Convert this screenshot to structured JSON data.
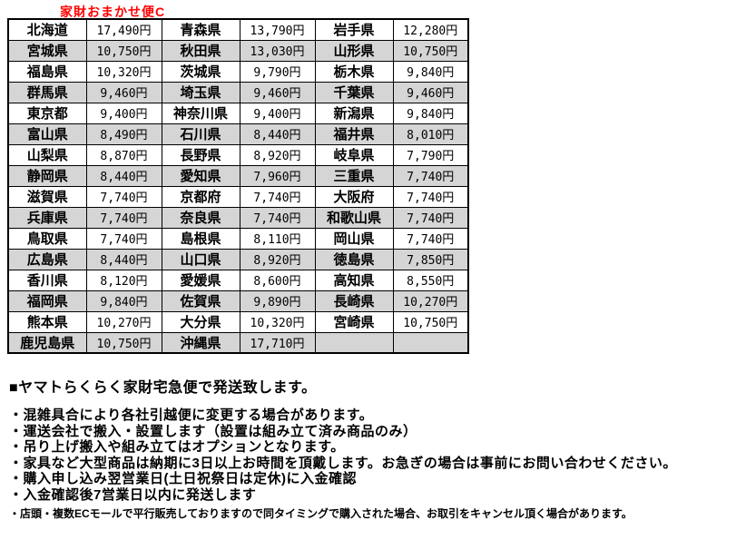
{
  "page": {
    "title_label": "家財おまかせ便C"
  },
  "table": {
    "rows": [
      [
        {
          "pref": "北海道",
          "price": "17,490円"
        },
        {
          "pref": "青森県",
          "price": "13,790円"
        },
        {
          "pref": "岩手県",
          "price": "12,280円"
        }
      ],
      [
        {
          "pref": "宮城県",
          "price": "10,750円"
        },
        {
          "pref": "秋田県",
          "price": "13,030円"
        },
        {
          "pref": "山形県",
          "price": "10,750円"
        }
      ],
      [
        {
          "pref": "福島県",
          "price": "10,320円"
        },
        {
          "pref": "茨城県",
          "price": "9,790円"
        },
        {
          "pref": "栃木県",
          "price": "9,840円"
        }
      ],
      [
        {
          "pref": "群馬県",
          "price": "9,460円"
        },
        {
          "pref": "埼玉県",
          "price": "9,460円"
        },
        {
          "pref": "千葉県",
          "price": "9,460円"
        }
      ],
      [
        {
          "pref": "東京都",
          "price": "9,400円"
        },
        {
          "pref": "神奈川県",
          "price": "9,400円"
        },
        {
          "pref": "新潟県",
          "price": "9,840円"
        }
      ],
      [
        {
          "pref": "富山県",
          "price": "8,490円"
        },
        {
          "pref": "石川県",
          "price": "8,440円"
        },
        {
          "pref": "福井県",
          "price": "8,010円"
        }
      ],
      [
        {
          "pref": "山梨県",
          "price": "8,870円"
        },
        {
          "pref": "長野県",
          "price": "8,920円"
        },
        {
          "pref": "岐阜県",
          "price": "7,790円"
        }
      ],
      [
        {
          "pref": "静岡県",
          "price": "8,440円"
        },
        {
          "pref": "愛知県",
          "price": "7,960円"
        },
        {
          "pref": "三重県",
          "price": "7,740円"
        }
      ],
      [
        {
          "pref": "滋賀県",
          "price": "7,740円"
        },
        {
          "pref": "京都府",
          "price": "7,740円"
        },
        {
          "pref": "大阪府",
          "price": "7,740円"
        }
      ],
      [
        {
          "pref": "兵庫県",
          "price": "7,740円"
        },
        {
          "pref": "奈良県",
          "price": "7,740円"
        },
        {
          "pref": "和歌山県",
          "price": "7,740円"
        }
      ],
      [
        {
          "pref": "鳥取県",
          "price": "7,740円"
        },
        {
          "pref": "島根県",
          "price": "8,110円"
        },
        {
          "pref": "岡山県",
          "price": "7,740円"
        }
      ],
      [
        {
          "pref": "広島県",
          "price": "8,440円"
        },
        {
          "pref": "山口県",
          "price": "8,920円"
        },
        {
          "pref": "徳島県",
          "price": "7,850円"
        }
      ],
      [
        {
          "pref": "香川県",
          "price": "8,120円"
        },
        {
          "pref": "愛媛県",
          "price": "8,600円"
        },
        {
          "pref": "高知県",
          "price": "8,550円"
        }
      ],
      [
        {
          "pref": "福岡県",
          "price": "9,840円"
        },
        {
          "pref": "佐賀県",
          "price": "9,890円"
        },
        {
          "pref": "長崎県",
          "price": "10,270円"
        }
      ],
      [
        {
          "pref": "熊本県",
          "price": "10,270円"
        },
        {
          "pref": "大分県",
          "price": "10,320円"
        },
        {
          "pref": "宮崎県",
          "price": "10,750円"
        }
      ],
      [
        {
          "pref": "鹿児島県",
          "price": "10,750円"
        },
        {
          "pref": "沖縄県",
          "price": "17,710円"
        },
        {
          "pref": "",
          "price": ""
        }
      ]
    ]
  },
  "notes": {
    "heading": "■ヤマトらくらく家財宅急便で発送致します。",
    "bullets": [
      "・混雑具合により各社引越便に変更する場合があります。",
      "・運送会社で搬入・設置します（設置は組み立て済み商品のみ）",
      "・吊り上げ搬入や組み立てはオプションとなります。",
      "・家具など大型商品は納期に3日以上お時間を頂戴します。お急ぎの場合は事前にお問い合わせください。",
      "・購入申し込み翌営業日(土日祝祭日は定休)に入金確認",
      "・入金確認後7営業日以内に発送します"
    ],
    "fine_print": "・店頭・複数ECモールで平行販売しておりますので同タイミングで購入された場合、お取引をキャンセル頂く場合があります。"
  },
  "colors": {
    "title": "#ff0000",
    "stripe": "#d5d5d5",
    "border": "#000000",
    "text": "#000000"
  }
}
